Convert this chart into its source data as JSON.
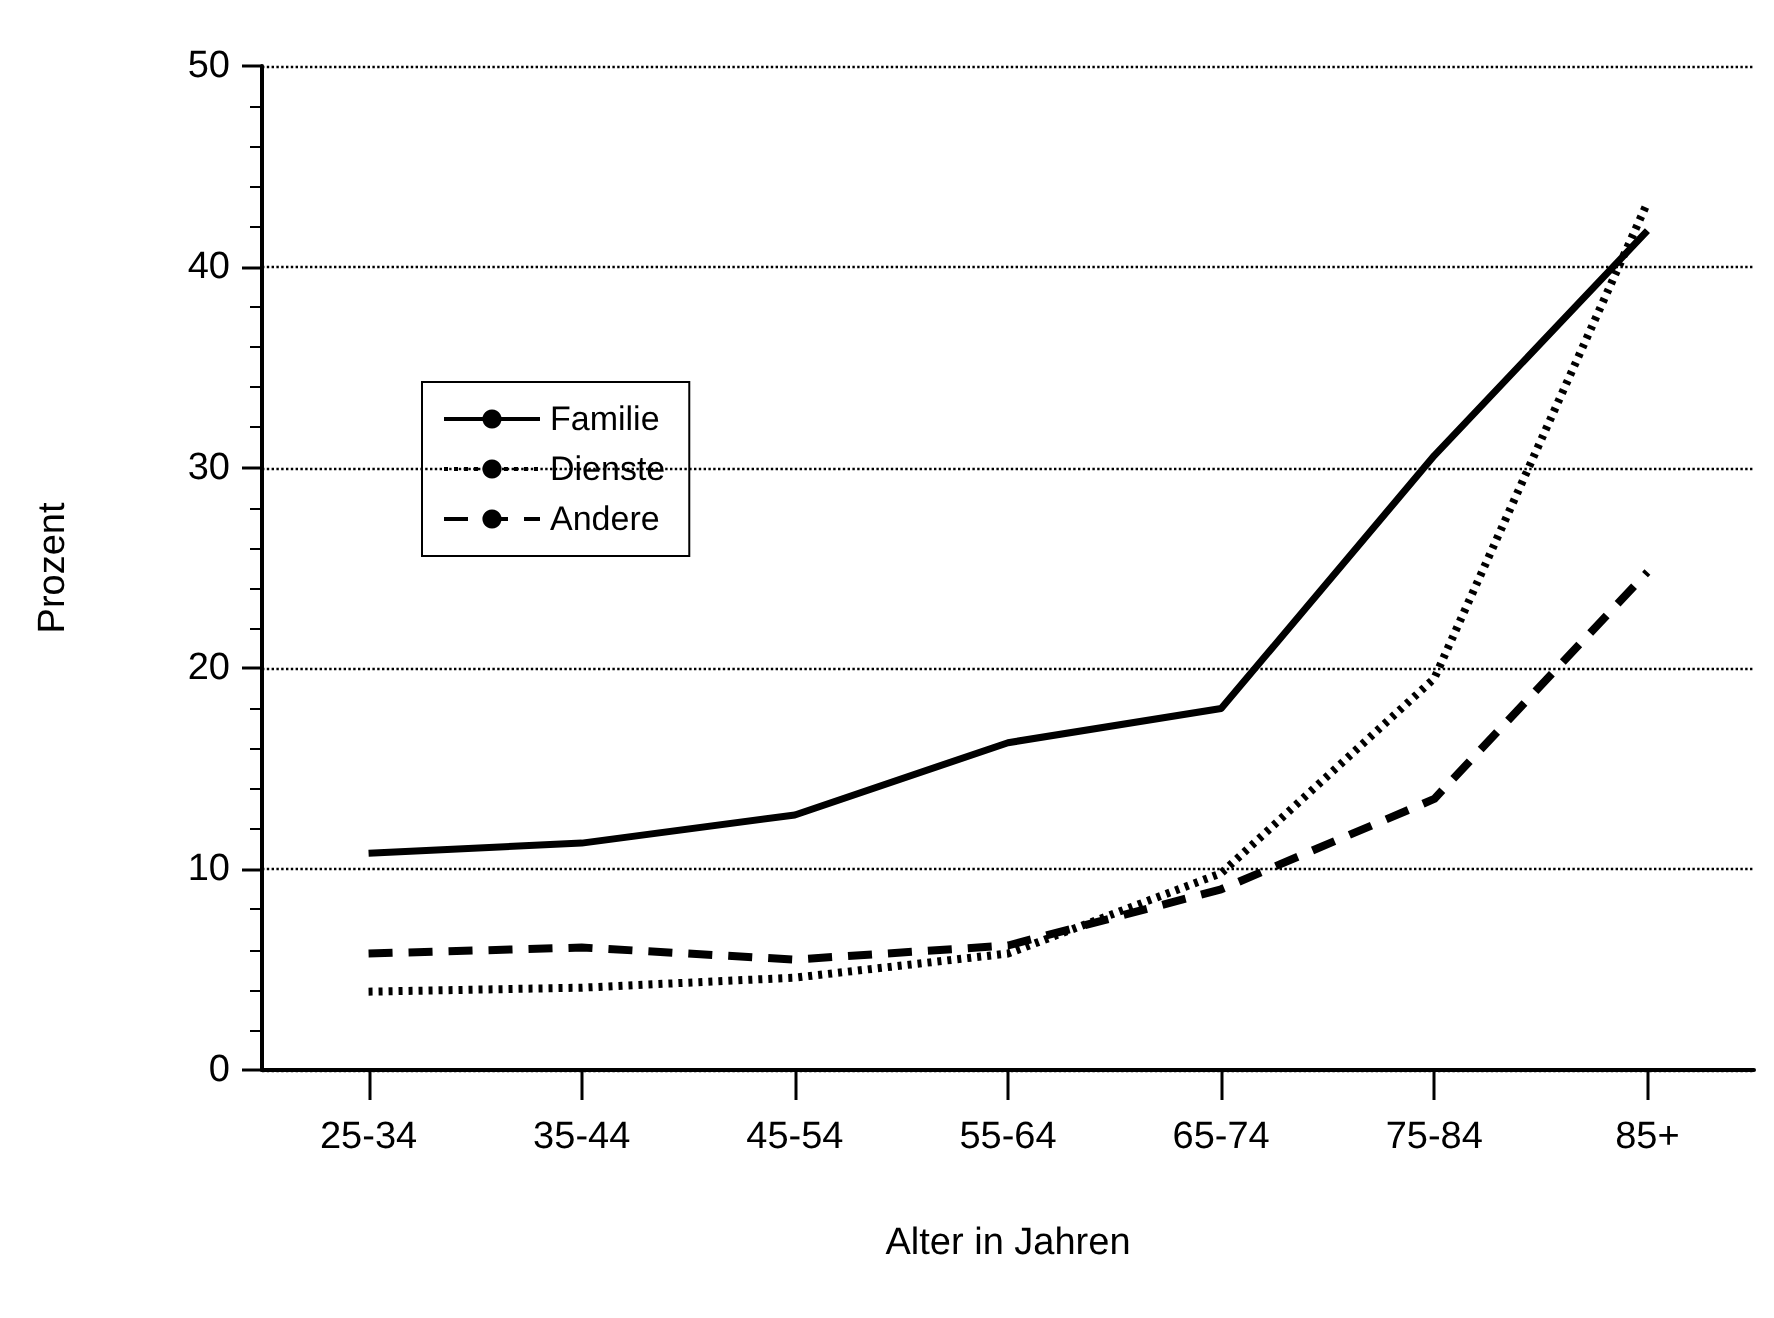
{
  "chart_data": {
    "type": "line",
    "xlabel": "Alter in Jahren",
    "ylabel": "Prozent",
    "categories": [
      "25-34",
      "35-44",
      "45-54",
      "55-64",
      "65-74",
      "75-84",
      "85+"
    ],
    "ylim": [
      0,
      50
    ],
    "yticks": [
      0,
      10,
      20,
      30,
      40,
      50
    ],
    "grid": "y",
    "legend": "left",
    "marker": "none",
    "series": [
      {
        "name": "Familie",
        "color": "#000000",
        "line_style": "solid",
        "values": [
          10.8,
          11.3,
          12.7,
          16.3,
          18.0,
          30.6,
          41.8
        ]
      },
      {
        "name": "Dienste",
        "color": "#000000",
        "line_style": "dotted",
        "values": [
          3.9,
          4.1,
          4.6,
          5.8,
          9.8,
          19.5,
          43.2
        ]
      },
      {
        "name": "Andere",
        "color": "#000000",
        "line_style": "dashed",
        "values": [
          5.8,
          6.1,
          5.5,
          6.2,
          9.0,
          13.5,
          24.8
        ]
      }
    ]
  }
}
